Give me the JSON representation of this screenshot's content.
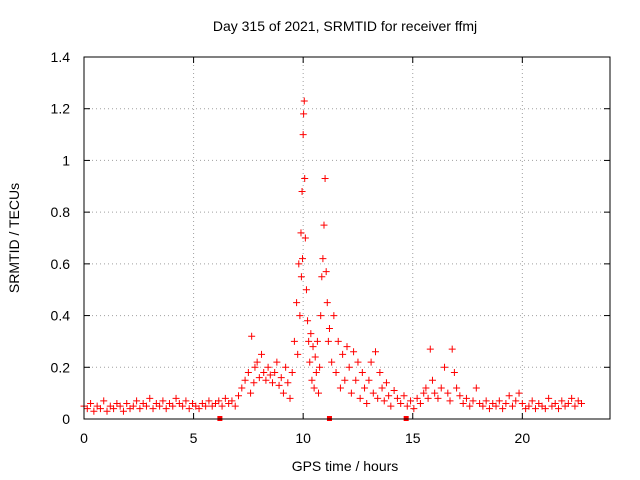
{
  "chart_data": {
    "type": "scatter",
    "title": "Day 315 of 2021, SRMTID for receiver ffmj",
    "xlabel": "GPS time / hours",
    "ylabel": "SRMTID / TECUs",
    "xlim": [
      0,
      24
    ],
    "ylim": [
      0,
      1.4
    ],
    "xticks": [
      0,
      5,
      10,
      15,
      20
    ],
    "yticks": [
      0,
      0.2,
      0.4,
      0.6,
      0.8,
      1,
      1.2,
      1.4
    ],
    "ytick_labels": [
      "0",
      "0.2",
      "0.4",
      "0.6",
      "0.8",
      "1",
      "1.2",
      "1.4"
    ],
    "grid": true,
    "marker": "+",
    "color": "#ff0000",
    "series": [
      {
        "name": "SRMTID",
        "x": [
          0.0,
          0.15,
          0.3,
          0.45,
          0.6,
          0.75,
          0.9,
          1.05,
          1.2,
          1.35,
          1.5,
          1.65,
          1.8,
          1.95,
          2.1,
          2.25,
          2.4,
          2.55,
          2.7,
          2.85,
          3.0,
          3.15,
          3.3,
          3.45,
          3.6,
          3.75,
          3.9,
          4.05,
          4.2,
          4.35,
          4.5,
          4.65,
          4.8,
          4.95,
          5.1,
          5.25,
          5.4,
          5.55,
          5.7,
          5.85,
          6.0,
          6.15,
          6.3,
          6.45,
          6.6,
          6.75,
          6.9,
          7.05,
          7.2,
          7.35,
          7.5,
          7.6,
          7.65,
          7.75,
          7.8,
          7.9,
          8.0,
          8.1,
          8.2,
          8.3,
          8.4,
          8.5,
          8.6,
          8.7,
          8.8,
          8.9,
          9.0,
          9.1,
          9.2,
          9.3,
          9.4,
          9.5,
          9.6,
          9.7,
          9.75,
          9.8,
          9.85,
          9.9,
          9.92,
          9.95,
          9.97,
          10.0,
          10.02,
          10.05,
          10.07,
          10.1,
          10.15,
          10.2,
          10.25,
          10.3,
          10.35,
          10.4,
          10.45,
          10.5,
          10.55,
          10.6,
          10.65,
          10.7,
          10.75,
          10.8,
          10.85,
          10.9,
          10.95,
          11.0,
          11.05,
          11.1,
          11.15,
          11.2,
          11.3,
          11.4,
          11.5,
          11.6,
          11.7,
          11.8,
          11.9,
          12.0,
          12.1,
          12.2,
          12.3,
          12.4,
          12.5,
          12.6,
          12.7,
          12.8,
          12.9,
          13.0,
          13.1,
          13.2,
          13.3,
          13.4,
          13.5,
          13.6,
          13.7,
          13.8,
          13.9,
          14.0,
          14.15,
          14.3,
          14.45,
          14.6,
          14.75,
          14.9,
          15.05,
          15.2,
          15.35,
          15.5,
          15.6,
          15.7,
          15.8,
          15.9,
          16.0,
          16.15,
          16.3,
          16.45,
          16.6,
          16.7,
          16.8,
          16.9,
          17.0,
          17.15,
          17.3,
          17.45,
          17.6,
          17.75,
          17.9,
          18.05,
          18.2,
          18.35,
          18.5,
          18.65,
          18.8,
          18.95,
          19.1,
          19.25,
          19.4,
          19.55,
          19.7,
          19.85,
          20.0,
          20.15,
          20.3,
          20.45,
          20.6,
          20.75,
          20.9,
          21.05,
          21.2,
          21.35,
          21.5,
          21.65,
          21.8,
          21.95,
          22.1,
          22.25,
          22.4,
          22.55,
          22.7
        ],
        "y": [
          0.05,
          0.04,
          0.06,
          0.03,
          0.05,
          0.04,
          0.07,
          0.03,
          0.05,
          0.04,
          0.06,
          0.05,
          0.03,
          0.06,
          0.04,
          0.05,
          0.07,
          0.04,
          0.06,
          0.05,
          0.08,
          0.04,
          0.06,
          0.05,
          0.07,
          0.04,
          0.06,
          0.05,
          0.08,
          0.06,
          0.05,
          0.07,
          0.04,
          0.06,
          0.05,
          0.04,
          0.06,
          0.05,
          0.07,
          0.05,
          0.06,
          0.07,
          0.05,
          0.08,
          0.06,
          0.07,
          0.05,
          0.09,
          0.12,
          0.15,
          0.18,
          0.1,
          0.32,
          0.14,
          0.2,
          0.22,
          0.16,
          0.25,
          0.18,
          0.15,
          0.2,
          0.17,
          0.14,
          0.18,
          0.22,
          0.13,
          0.16,
          0.1,
          0.2,
          0.14,
          0.08,
          0.18,
          0.3,
          0.45,
          0.25,
          0.6,
          0.4,
          0.72,
          0.55,
          0.88,
          0.62,
          1.1,
          1.18,
          1.23,
          0.93,
          0.7,
          0.5,
          0.38,
          0.3,
          0.22,
          0.33,
          0.15,
          0.28,
          0.12,
          0.24,
          0.18,
          0.3,
          0.1,
          0.2,
          0.4,
          0.55,
          0.62,
          0.75,
          0.93,
          0.57,
          0.45,
          0.3,
          0.35,
          0.22,
          0.4,
          0.18,
          0.3,
          0.12,
          0.25,
          0.15,
          0.28,
          0.2,
          0.1,
          0.26,
          0.15,
          0.22,
          0.08,
          0.18,
          0.12,
          0.06,
          0.15,
          0.22,
          0.1,
          0.26,
          0.08,
          0.18,
          0.12,
          0.07,
          0.14,
          0.09,
          0.05,
          0.11,
          0.08,
          0.06,
          0.09,
          0.05,
          0.07,
          0.04,
          0.08,
          0.06,
          0.1,
          0.12,
          0.08,
          0.27,
          0.15,
          0.1,
          0.08,
          0.12,
          0.2,
          0.1,
          0.07,
          0.27,
          0.18,
          0.12,
          0.09,
          0.06,
          0.08,
          0.05,
          0.07,
          0.12,
          0.06,
          0.05,
          0.07,
          0.04,
          0.06,
          0.05,
          0.07,
          0.04,
          0.06,
          0.09,
          0.05,
          0.07,
          0.1,
          0.06,
          0.04,
          0.05,
          0.07,
          0.04,
          0.06,
          0.05,
          0.04,
          0.08,
          0.05,
          0.06,
          0.04,
          0.07,
          0.05,
          0.06,
          0.08,
          0.05,
          0.07,
          0.06
        ]
      }
    ],
    "bottom_markers_x": [
      6.2,
      11.2,
      14.7
    ]
  }
}
